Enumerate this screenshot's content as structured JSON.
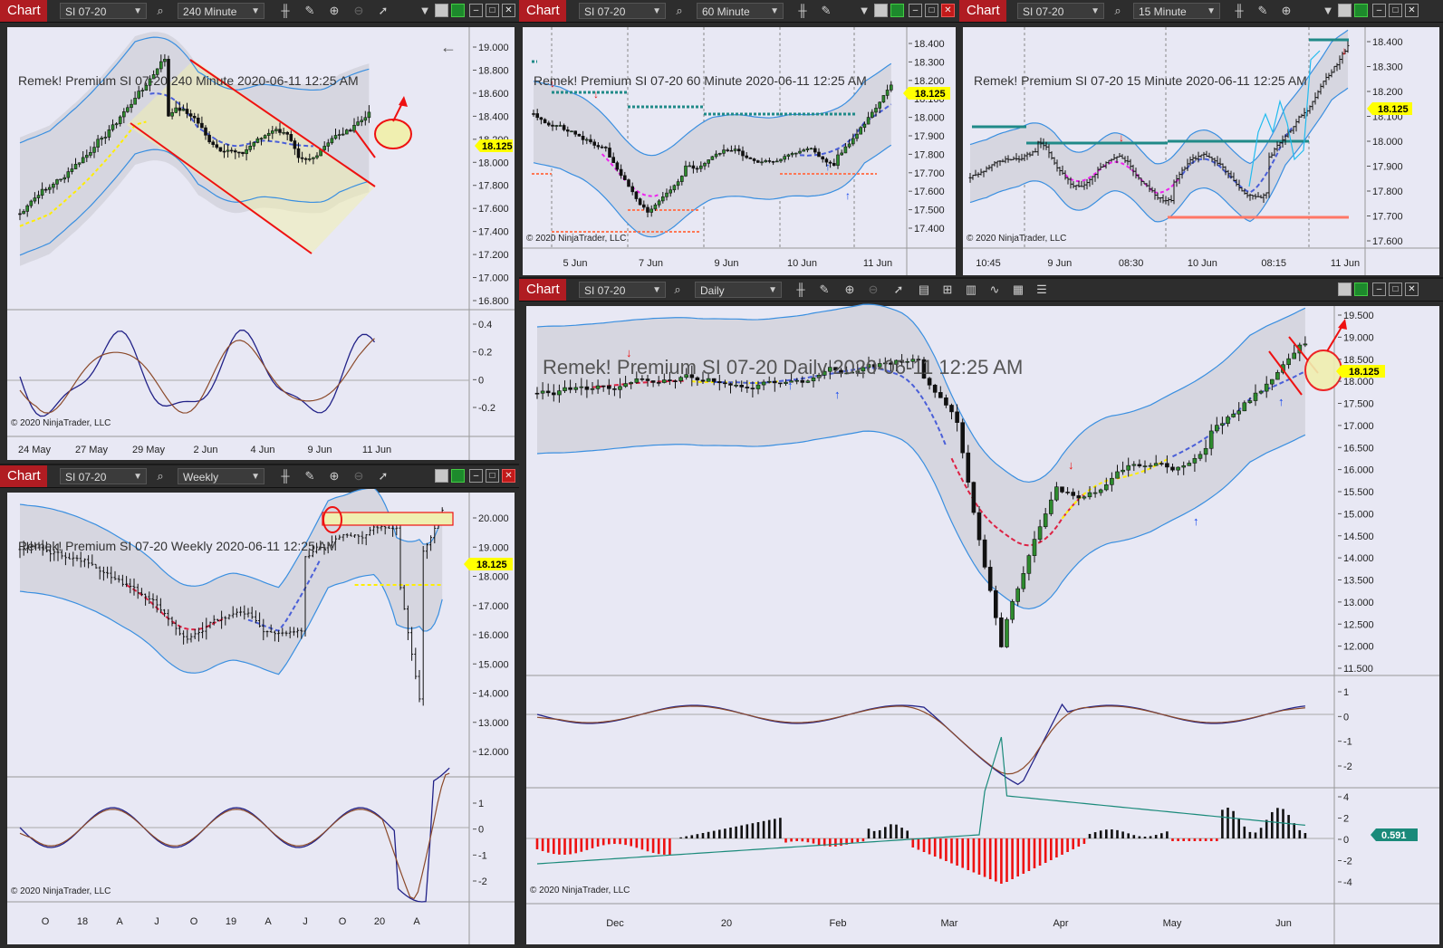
{
  "common": {
    "chart_label": "Chart",
    "instrument": "SI 07-20",
    "copyright": "© 2020 NinjaTrader, LLC",
    "last_price": "18.125",
    "watermark_date": "2020-06-11 12:25 AM",
    "brand": "Remek!  Premium"
  },
  "panels": {
    "p240": {
      "interval": "240 Minute",
      "watermark": "Remek!  Premium  SI 07-20  240 Minute  2020-06-11 12:25 AM",
      "y_ticks": [
        "19.000",
        "18.800",
        "18.600",
        "18.400",
        "18.200",
        "18.000",
        "17.800",
        "17.600",
        "17.400",
        "17.200",
        "17.000",
        "16.800"
      ],
      "osc_ticks": [
        "0.4",
        "0.2",
        "0",
        "-0.2"
      ],
      "x_ticks": [
        "24 May",
        "27 May",
        "29 May",
        "2 Jun",
        "4 Jun",
        "9 Jun",
        "11 Jun"
      ]
    },
    "p60": {
      "interval": "60 Minute",
      "watermark": "Remek!  Premium  SI 07-20  60 Minute  2020-06-11 12:25 AM",
      "y_ticks": [
        "18.400",
        "18.300",
        "18.200",
        "18.100",
        "18.000",
        "17.900",
        "17.800",
        "17.700",
        "17.600",
        "17.500",
        "17.400"
      ],
      "x_ticks": [
        "5 Jun",
        "7 Jun",
        "9 Jun",
        "10 Jun",
        "11 Jun"
      ]
    },
    "p15": {
      "interval": "15 Minute",
      "watermark": "Remek!  Premium  SI 07-20  15 Minute  2020-06-11 12:25 AM",
      "y_ticks": [
        "18.400",
        "18.300",
        "18.200",
        "18.100",
        "18.000",
        "17.900",
        "17.800",
        "17.700",
        "17.600"
      ],
      "x_ticks": [
        "10:45",
        "9 Jun",
        "08:30",
        "10 Jun",
        "08:15",
        "11 Jun"
      ]
    },
    "pweekly": {
      "interval": "Weekly",
      "watermark": "Remek!  Premium  SI 07-20  Weekly  2020-06-11 12:25 AM",
      "y_ticks": [
        "20.000",
        "19.000",
        "18.000",
        "17.000",
        "16.000",
        "15.000",
        "14.000",
        "13.000",
        "12.000"
      ],
      "osc_ticks": [
        "1",
        "0",
        "-1",
        "-2"
      ],
      "x_ticks": [
        "O",
        "18",
        "A",
        "J",
        "O",
        "19",
        "A",
        "J",
        "O",
        "20",
        "A"
      ]
    },
    "pdaily": {
      "interval": "Daily",
      "watermark": "Remek!  Premium  SI 07-20  Daily  2020-06-11 12:25 AM",
      "y_ticks": [
        "19.500",
        "19.000",
        "18.500",
        "18.000",
        "17.500",
        "17.000",
        "16.500",
        "16.000",
        "15.500",
        "15.000",
        "14.500",
        "14.000",
        "13.500",
        "13.000",
        "12.500",
        "12.000",
        "11.500"
      ],
      "osc_ticks": [
        "1",
        "0",
        "-1",
        "-2"
      ],
      "hist_ticks": [
        "4",
        "2",
        "0",
        "-2",
        "-4"
      ],
      "hist_last": "0.591",
      "x_ticks": [
        "Dec",
        "20",
        "Feb",
        "Mar",
        "Apr",
        "May",
        "Jun"
      ]
    }
  },
  "colors": {
    "bg_chart": "#e8e8f4",
    "band": "#3a8fe0",
    "fill": "#d6d6e0",
    "midline_down": "#dd2244",
    "midline_up": "#4a5fd8",
    "pivot": "#ffee00",
    "arrow_red": "#ee1111",
    "price_tag": "#ffff00",
    "chip_red": "#b01c22"
  }
}
